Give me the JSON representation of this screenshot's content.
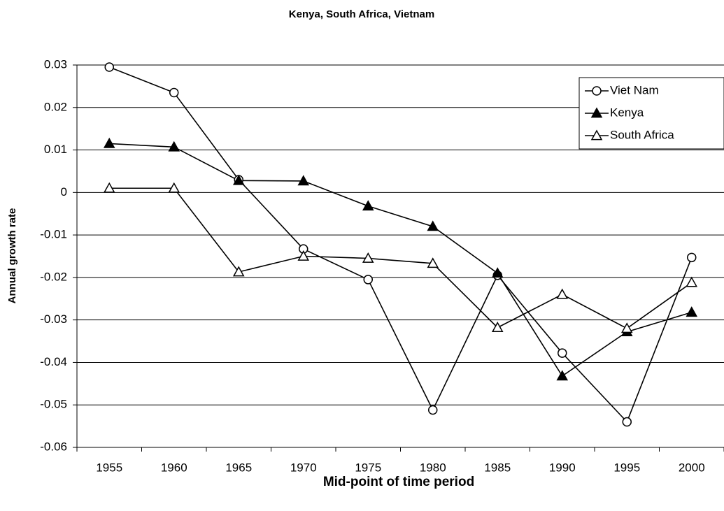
{
  "chart_data": {
    "type": "line",
    "title": "Kenya, South Africa, Vietnam",
    "x_label": "Mid-point of time period",
    "y_label": "Annual growth rate",
    "categories": [
      "1955",
      "1960",
      "1965",
      "1970",
      "1975",
      "1980",
      "1985",
      "1990",
      "1995",
      "2000"
    ],
    "series": [
      {
        "name": "Viet Nam",
        "color": "#000000",
        "marker": "circle-open",
        "values": [
          0.0295,
          0.0235,
          0.003,
          -0.0133,
          -0.0205,
          -0.0512,
          -0.0195,
          -0.0378,
          -0.054,
          -0.0153
        ]
      },
      {
        "name": "Kenya",
        "color": "#000000",
        "marker": "triangle-filled",
        "values": [
          0.0115,
          0.0107,
          0.0028,
          0.0027,
          -0.0032,
          -0.008,
          -0.019,
          -0.0432,
          -0.0328,
          -0.0282
        ]
      },
      {
        "name": "South Africa",
        "color": "#000000",
        "marker": "triangle-open",
        "values": [
          0.001,
          0.001,
          -0.0187,
          -0.015,
          -0.0155,
          -0.0167,
          -0.0318,
          -0.024,
          -0.032,
          -0.0212
        ]
      }
    ],
    "ylim": [
      -0.06,
      0.03
    ],
    "yticks": [
      -0.06,
      -0.05,
      -0.04,
      -0.03,
      -0.02,
      -0.01,
      0,
      0.01,
      0.02,
      0.03
    ],
    "grid": true,
    "legend": "upper right"
  }
}
